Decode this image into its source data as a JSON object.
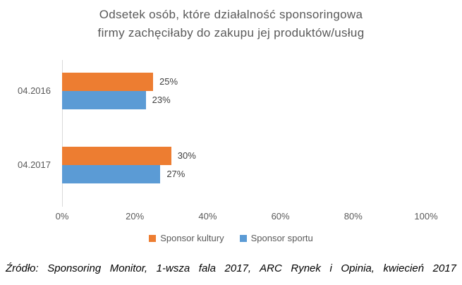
{
  "title_lines": {
    "line1": "Odsetek osób, które działalność sponsoringowa",
    "line2": "firmy zachęciłaby do zakupu jej produktów/usług"
  },
  "chart_data": {
    "type": "bar",
    "orientation": "horizontal",
    "title": "Odsetek osób, które działalność sponsoringowa firmy zachęciłaby do zakupu jej produktów/usług",
    "categories": [
      "04.2016",
      "04.2017"
    ],
    "series": [
      {
        "name": "Sponsor kultury",
        "color": "#ED7D31",
        "values": [
          25,
          30
        ]
      },
      {
        "name": "Sponsor sportu",
        "color": "#5B9BD5",
        "values": [
          23,
          27
        ]
      }
    ],
    "data_labels": [
      [
        "25%",
        "23%"
      ],
      [
        "30%",
        "27%"
      ]
    ],
    "value_suffix": "%",
    "x_tick_labels": [
      "0%",
      "20%",
      "40%",
      "60%",
      "80%",
      "100%"
    ],
    "xlim": [
      0,
      100
    ],
    "grid": false,
    "legend_position": "bottom"
  },
  "colors": {
    "orange": "#ED7D31",
    "blue": "#5B9BD5",
    "axis_line": "#D9D9D9",
    "title_gray": "#595959",
    "label_dark": "#404040"
  },
  "source": "Źródło: Sponsoring Monitor, 1-wsza fala 2017, ARC Rynek i Opinia, kwiecień 2017"
}
